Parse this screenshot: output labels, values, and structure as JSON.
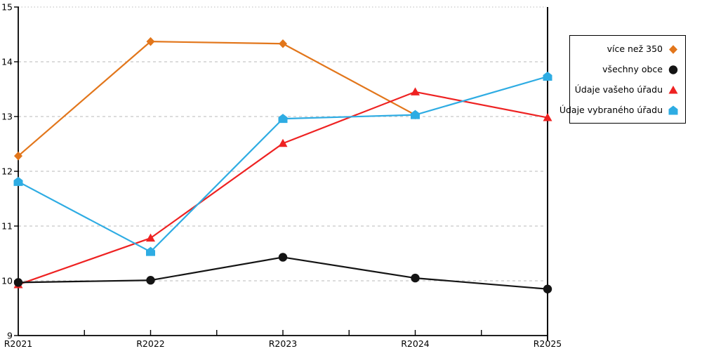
{
  "chart_data": {
    "type": "line",
    "title": "",
    "xlabel": "",
    "ylabel": "",
    "categories": [
      "R2021",
      "R2022",
      "R2023",
      "R2024",
      "R2025"
    ],
    "series": [
      {
        "name": "více než 350",
        "color": "#E2761B",
        "marker": "diamond",
        "values": [
          12.28,
          14.37,
          14.33,
          13.03,
          null
        ]
      },
      {
        "name": "všechny obce",
        "color": "#141414",
        "marker": "circle",
        "values": [
          9.97,
          10.01,
          10.43,
          10.05,
          9.85
        ]
      },
      {
        "name": "Údaje vašeho úřadu",
        "color": "#EE2222",
        "marker": "triangle",
        "values": [
          9.93,
          10.78,
          12.51,
          13.45,
          12.98
        ]
      },
      {
        "name": "Údaje vybraného úřadu",
        "color": "#2EACE3",
        "marker": "pentagon",
        "values": [
          11.81,
          10.53,
          12.96,
          13.03,
          13.73
        ]
      }
    ],
    "ylim": [
      9,
      15
    ],
    "ytick_step": 1,
    "y_tick_labels": [
      "9",
      "10",
      "11",
      "12",
      "13",
      "14",
      "15"
    ],
    "grid": "horizontal-dashed",
    "grid_color": "#c8c8c8",
    "axis_color": "#000000",
    "legend_position": "right",
    "highlight_x": "R2025",
    "draw_order": [
      0,
      2,
      3,
      1
    ]
  }
}
